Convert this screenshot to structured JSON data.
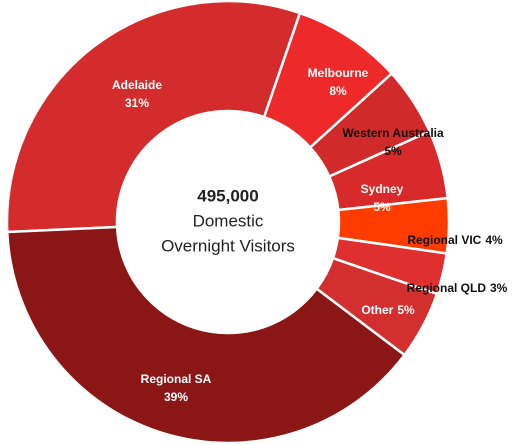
{
  "chart_data": {
    "type": "donut",
    "center_text": [
      "495,000",
      "Domestic",
      "Overnight Visitors"
    ],
    "categories": [
      "Adelaide",
      "Melbourne",
      "Western Australia",
      "Sydney",
      "Regional VIC",
      "Regional QLD",
      "Other",
      "Regional SA"
    ],
    "values": [
      31,
      8,
      5,
      5,
      4,
      3,
      5,
      39
    ],
    "value_labels": [
      "31%",
      "8%",
      "5%",
      "5%",
      "4%",
      "3%",
      "5%",
      "39%"
    ],
    "colors": [
      "#d42c2c",
      "#ee2929",
      "#d02a2a",
      "#d82a2a",
      "#ff3c00",
      "#e02f2f",
      "#d42f2f",
      "#8b1616"
    ]
  }
}
